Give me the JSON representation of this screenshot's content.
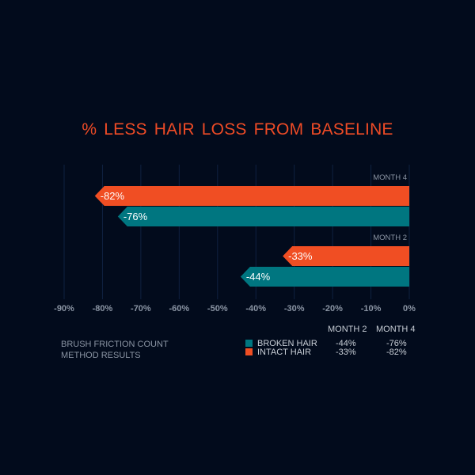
{
  "colors": {
    "background": "#020b1c",
    "intact": "#f04e23",
    "broken": "#007680",
    "grid": "#0f2140",
    "text": "#8a94a3"
  },
  "chart_data": {
    "type": "bar",
    "orientation": "horizontal",
    "title": "% LESS  HAIR  LOSS FROM BASELINE",
    "xlim": [
      -90,
      0
    ],
    "ticks": [
      -90,
      -80,
      -70,
      -60,
      -50,
      -40,
      -30,
      -20,
      -10,
      0
    ],
    "tick_labels": [
      "-90%",
      "-80%",
      "-70%",
      "-60%",
      "-50%",
      "-40%",
      "-30%",
      "-20%",
      "-10%",
      "0%"
    ],
    "grid": true,
    "groups": [
      {
        "label": "MONTH 4",
        "bars": [
          {
            "series": "INTACT HAIR",
            "value": -82,
            "label": "-82%"
          },
          {
            "series": "BROKEN HAIR",
            "value": -76,
            "label": "-76%"
          }
        ]
      },
      {
        "label": "MONTH 2",
        "bars": [
          {
            "series": "INTACT HAIR",
            "value": -33,
            "label": "-33%"
          },
          {
            "series": "BROKEN HAIR",
            "value": -44,
            "label": "-44%"
          }
        ]
      }
    ],
    "legend": {
      "placement": "bottom",
      "columns": [
        "MONTH 2",
        "MONTH 4"
      ],
      "rows": [
        {
          "name": "BROKEN HAIR",
          "color": "#007680",
          "values": [
            "-44%",
            "-76%"
          ]
        },
        {
          "name": "INTACT HAIR",
          "color": "#f04e23",
          "values": [
            "-33%",
            "-82%"
          ]
        }
      ]
    },
    "note_lines": [
      "BRUSH FRICTION COUNT",
      "METHOD RESULTS"
    ]
  }
}
